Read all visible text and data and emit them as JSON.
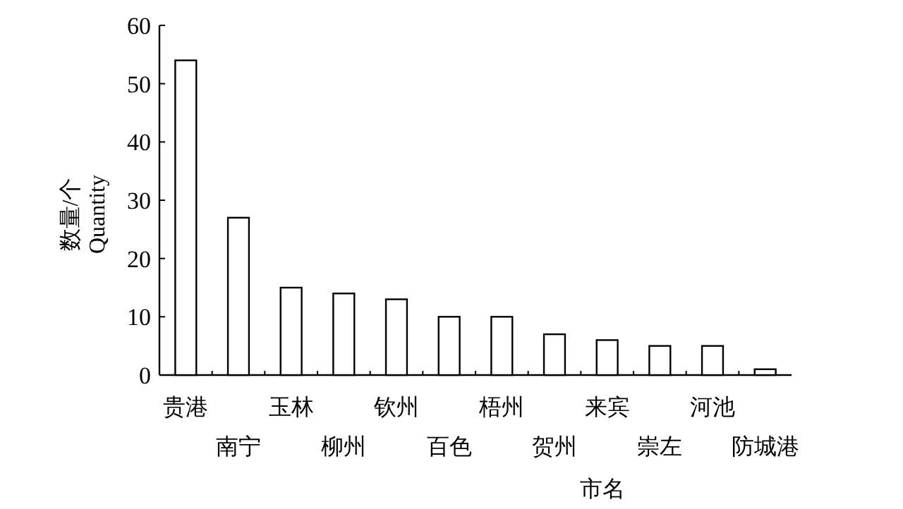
{
  "chart_data": {
    "type": "bar",
    "xlabel": "市名",
    "ylabel": "数量/个\nQuantity",
    "categories": [
      "贵港",
      "南宁",
      "玉林",
      "柳州",
      "钦州",
      "百色",
      "梧州",
      "贺州",
      "来宾",
      "崇左",
      "河池",
      "防城港"
    ],
    "values": [
      54,
      27,
      15,
      14,
      13,
      10,
      10,
      7,
      6,
      5,
      5,
      1
    ],
    "color": "#ffffff",
    "ylim": [
      0,
      60
    ],
    "yticks": [
      0,
      10,
      20,
      30,
      40,
      50,
      60
    ],
    "grid": false
  }
}
